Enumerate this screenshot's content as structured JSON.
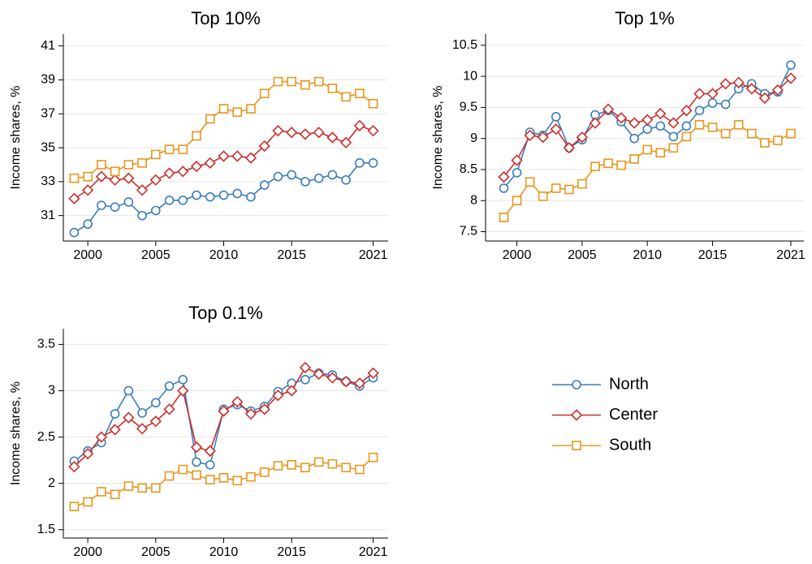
{
  "chart_data": [
    {
      "type": "line",
      "title": "Top 10%",
      "ylabel": "Income shares, %",
      "x": [
        1999,
        2000,
        2001,
        2002,
        2003,
        2004,
        2005,
        2006,
        2007,
        2008,
        2009,
        2010,
        2011,
        2012,
        2013,
        2014,
        2015,
        2016,
        2017,
        2018,
        2019,
        2020,
        2021
      ],
      "xlim": [
        1998.2,
        2022.1
      ],
      "xticks": [
        2000,
        2005,
        2010,
        2015,
        2021
      ],
      "ylim": [
        29.5,
        41.7
      ],
      "yticks": [
        31,
        33,
        35,
        37,
        39,
        41
      ],
      "grid": true,
      "series": [
        {
          "name": "North",
          "color": "#3a7dbd",
          "marker": "circle",
          "values": [
            30.0,
            30.5,
            31.6,
            31.5,
            31.8,
            31.0,
            31.3,
            31.9,
            31.9,
            32.2,
            32.1,
            32.2,
            32.3,
            32.1,
            32.8,
            33.3,
            33.4,
            33.0,
            33.2,
            33.4,
            33.1,
            34.1,
            34.1
          ]
        },
        {
          "name": "Center",
          "color": "#c9302c",
          "marker": "diamond",
          "values": [
            32.0,
            32.5,
            33.3,
            33.1,
            33.2,
            32.5,
            33.1,
            33.5,
            33.6,
            33.9,
            34.1,
            34.5,
            34.5,
            34.4,
            35.1,
            36.0,
            35.9,
            35.8,
            35.9,
            35.6,
            35.3,
            36.3,
            36.0
          ]
        },
        {
          "name": "South",
          "color": "#e8961e",
          "marker": "square",
          "values": [
            33.2,
            33.3,
            34.0,
            33.6,
            34.0,
            34.1,
            34.6,
            34.9,
            34.9,
            35.7,
            36.7,
            37.3,
            37.1,
            37.3,
            38.2,
            38.9,
            38.9,
            38.7,
            38.9,
            38.5,
            38.0,
            38.2,
            37.6
          ]
        }
      ]
    },
    {
      "type": "line",
      "title": "Top 1%",
      "ylabel": "Income shares, %",
      "x": [
        1999,
        2000,
        2001,
        2002,
        2003,
        2004,
        2005,
        2006,
        2007,
        2008,
        2009,
        2010,
        2011,
        2012,
        2013,
        2014,
        2015,
        2016,
        2017,
        2018,
        2019,
        2020,
        2021
      ],
      "xlim": [
        1997.6,
        2022.0
      ],
      "xticks": [
        2000,
        2005,
        2010,
        2015,
        2021
      ],
      "ylim": [
        7.35,
        10.68
      ],
      "yticks": [
        7.5,
        8,
        8.5,
        9,
        9.5,
        10,
        10.5
      ],
      "grid": true,
      "series": [
        {
          "name": "North",
          "color": "#3a7dbd",
          "marker": "circle",
          "values": [
            8.2,
            8.45,
            9.1,
            9.05,
            9.35,
            8.85,
            8.98,
            9.38,
            9.45,
            9.27,
            9.0,
            9.15,
            9.2,
            9.03,
            9.2,
            9.45,
            9.57,
            9.55,
            9.8,
            9.88,
            9.72,
            9.75,
            10.18
          ]
        },
        {
          "name": "Center",
          "color": "#c9302c",
          "marker": "diamond",
          "values": [
            8.38,
            8.65,
            9.05,
            9.02,
            9.15,
            8.85,
            9.02,
            9.25,
            9.47,
            9.33,
            9.25,
            9.3,
            9.4,
            9.25,
            9.45,
            9.72,
            9.72,
            9.88,
            9.9,
            9.8,
            9.65,
            9.78,
            9.97
          ]
        },
        {
          "name": "South",
          "color": "#e8961e",
          "marker": "square",
          "values": [
            7.73,
            8.0,
            8.3,
            8.07,
            8.2,
            8.18,
            8.27,
            8.55,
            8.6,
            8.57,
            8.67,
            8.82,
            8.77,
            8.85,
            9.03,
            9.22,
            9.18,
            9.08,
            9.22,
            9.08,
            8.93,
            8.97,
            9.08
          ]
        }
      ]
    },
    {
      "type": "line",
      "title": "Top 0.1%",
      "ylabel": "Income shares, %",
      "x": [
        1999,
        2000,
        2001,
        2002,
        2003,
        2004,
        2005,
        2006,
        2007,
        2008,
        2009,
        2010,
        2011,
        2012,
        2013,
        2014,
        2015,
        2016,
        2017,
        2018,
        2019,
        2020,
        2021
      ],
      "xlim": [
        1998.2,
        2022.1
      ],
      "xticks": [
        2000,
        2005,
        2010,
        2015,
        2021
      ],
      "ylim": [
        1.41,
        3.67
      ],
      "yticks": [
        1.5,
        2,
        2.5,
        3,
        3.5
      ],
      "grid": true,
      "series": [
        {
          "name": "North",
          "color": "#3a7dbd",
          "marker": "circle",
          "values": [
            2.24,
            2.35,
            2.44,
            2.75,
            3.0,
            2.76,
            2.87,
            3.05,
            3.12,
            2.23,
            2.2,
            2.8,
            2.85,
            2.78,
            2.83,
            2.99,
            3.08,
            3.12,
            3.19,
            3.17,
            3.1,
            3.05,
            3.14
          ]
        },
        {
          "name": "Center",
          "color": "#c9302c",
          "marker": "diamond",
          "values": [
            2.18,
            2.32,
            2.5,
            2.58,
            2.71,
            2.59,
            2.67,
            2.8,
            3.0,
            2.39,
            2.35,
            2.78,
            2.88,
            2.75,
            2.8,
            2.95,
            3.0,
            3.25,
            3.18,
            3.14,
            3.1,
            3.08,
            3.19
          ]
        },
        {
          "name": "South",
          "color": "#e8961e",
          "marker": "square",
          "values": [
            1.75,
            1.8,
            1.91,
            1.88,
            1.97,
            1.95,
            1.95,
            2.08,
            2.15,
            2.09,
            2.04,
            2.06,
            2.03,
            2.07,
            2.12,
            2.19,
            2.2,
            2.17,
            2.23,
            2.21,
            2.17,
            2.15,
            2.28
          ]
        }
      ]
    }
  ]
}
